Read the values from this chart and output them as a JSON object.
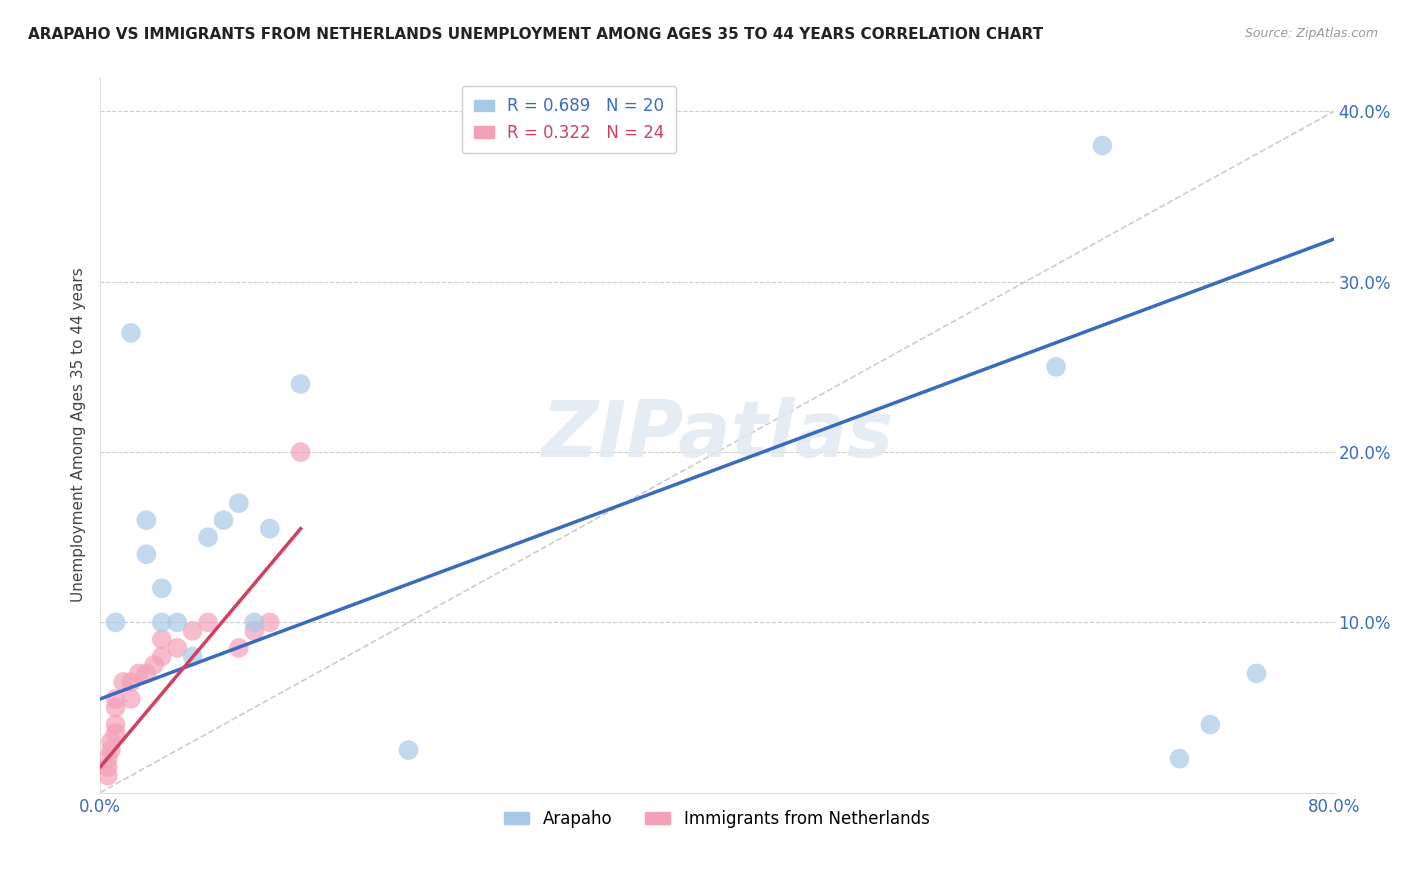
{
  "title": "ARAPAHO VS IMMIGRANTS FROM NETHERLANDS UNEMPLOYMENT AMONG AGES 35 TO 44 YEARS CORRELATION CHART",
  "source": "Source: ZipAtlas.com",
  "ylabel": "Unemployment Among Ages 35 to 44 years",
  "xlim": [
    0.0,
    0.8
  ],
  "ylim": [
    0.0,
    0.42
  ],
  "xticks": [
    0.0,
    0.1,
    0.2,
    0.3,
    0.4,
    0.5,
    0.6,
    0.7,
    0.8
  ],
  "xticklabels": [
    "0.0%",
    "",
    "",
    "",
    "",
    "",
    "",
    "",
    "80.0%"
  ],
  "yticks": [
    0.0,
    0.1,
    0.2,
    0.3,
    0.4
  ],
  "yticklabels": [
    "",
    "10.0%",
    "20.0%",
    "30.0%",
    "40.0%"
  ],
  "legend1_label": "R = 0.689   N = 20",
  "legend2_label": "R = 0.322   N = 24",
  "arapaho_color": "#a8c8e8",
  "netherlands_color": "#f4a0b8",
  "arapaho_line_color": "#3a6bbf",
  "netherlands_line_color": "#d04060",
  "watermark": "ZIPatlas",
  "arapaho_scatter_x": [
    0.01,
    0.02,
    0.03,
    0.03,
    0.04,
    0.04,
    0.05,
    0.06,
    0.07,
    0.08,
    0.09,
    0.1,
    0.11,
    0.13,
    0.2,
    0.62,
    0.65,
    0.7,
    0.72,
    0.75
  ],
  "arapaho_scatter_y": [
    0.1,
    0.27,
    0.14,
    0.16,
    0.1,
    0.12,
    0.1,
    0.08,
    0.15,
    0.16,
    0.17,
    0.1,
    0.155,
    0.24,
    0.025,
    0.25,
    0.38,
    0.02,
    0.04,
    0.07
  ],
  "netherlands_scatter_x": [
    0.005,
    0.005,
    0.005,
    0.007,
    0.007,
    0.01,
    0.01,
    0.01,
    0.01,
    0.015,
    0.02,
    0.02,
    0.025,
    0.03,
    0.035,
    0.04,
    0.04,
    0.05,
    0.06,
    0.07,
    0.09,
    0.1,
    0.11,
    0.13
  ],
  "netherlands_scatter_y": [
    0.01,
    0.015,
    0.02,
    0.025,
    0.03,
    0.035,
    0.04,
    0.05,
    0.055,
    0.065,
    0.055,
    0.065,
    0.07,
    0.07,
    0.075,
    0.08,
    0.09,
    0.085,
    0.095,
    0.1,
    0.085,
    0.095,
    0.1,
    0.2
  ],
  "arapaho_line_x": [
    0.0,
    0.8
  ],
  "arapaho_line_y": [
    0.055,
    0.325
  ],
  "netherlands_line_x": [
    0.0,
    0.13
  ],
  "netherlands_line_y": [
    0.015,
    0.155
  ],
  "diagonal_line_x": [
    0.0,
    0.8
  ],
  "diagonal_line_y": [
    0.0,
    0.4
  ]
}
